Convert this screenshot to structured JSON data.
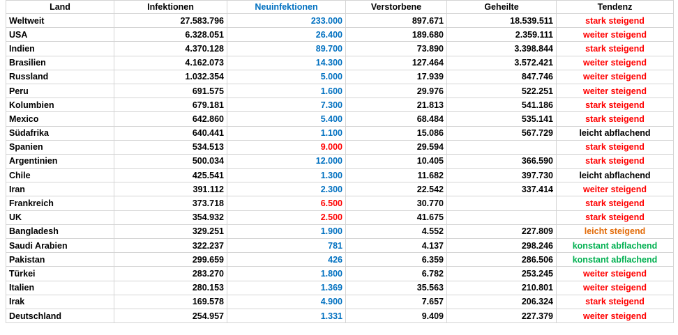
{
  "table": {
    "header": [
      "Land",
      "Infektionen",
      "Neuinfektionen",
      "Verstorbene",
      "Geheilte",
      "Tendenz"
    ],
    "header_colors": [
      "#000000",
      "#000000",
      "#0070c0",
      "#000000",
      "#000000",
      "#000000"
    ],
    "rows": [
      {
        "cells": [
          "Weltweit",
          "27.583.796",
          "233.000",
          "897.671",
          "18.539.511",
          "stark steigend"
        ],
        "new_color": "#0070c0",
        "trend_color": "#ff0000"
      },
      {
        "cells": [
          "USA",
          "6.328.051",
          "26.400",
          "189.680",
          "2.359.111",
          "weiter steigend"
        ],
        "new_color": "#0070c0",
        "trend_color": "#ff0000"
      },
      {
        "cells": [
          "Indien",
          "4.370.128",
          "89.700",
          "73.890",
          "3.398.844",
          "stark steigend"
        ],
        "new_color": "#0070c0",
        "trend_color": "#ff0000"
      },
      {
        "cells": [
          "Brasilien",
          "4.162.073",
          "14.300",
          "127.464",
          "3.572.421",
          "weiter steigend"
        ],
        "new_color": "#0070c0",
        "trend_color": "#ff0000"
      },
      {
        "cells": [
          "Russland",
          "1.032.354",
          "5.000",
          "17.939",
          "847.746",
          "weiter steigend"
        ],
        "new_color": "#0070c0",
        "trend_color": "#ff0000"
      },
      {
        "cells": [
          "Peru",
          "691.575",
          "1.600",
          "29.976",
          "522.251",
          "weiter steigend"
        ],
        "new_color": "#0070c0",
        "trend_color": "#ff0000"
      },
      {
        "cells": [
          "Kolumbien",
          "679.181",
          "7.300",
          "21.813",
          "541.186",
          "stark steigend"
        ],
        "new_color": "#0070c0",
        "trend_color": "#ff0000"
      },
      {
        "cells": [
          "Mexico",
          "642.860",
          "5.400",
          "68.484",
          "535.141",
          "stark steigend"
        ],
        "new_color": "#0070c0",
        "trend_color": "#ff0000"
      },
      {
        "cells": [
          "Südafrika",
          "640.441",
          "1.100",
          "15.086",
          "567.729",
          "leicht abflachend"
        ],
        "new_color": "#0070c0",
        "trend_color": "#000000"
      },
      {
        "cells": [
          "Spanien",
          "534.513",
          "9.000",
          "29.594",
          null,
          "stark steigend"
        ],
        "new_color": "#ff0000",
        "trend_color": "#ff0000"
      },
      {
        "cells": [
          "Argentinien",
          "500.034",
          "12.000",
          "10.405",
          "366.590",
          "stark steigend"
        ],
        "new_color": "#0070c0",
        "trend_color": "#ff0000"
      },
      {
        "cells": [
          "Chile",
          "425.541",
          "1.300",
          "11.682",
          "397.730",
          "leicht abflachend"
        ],
        "new_color": "#0070c0",
        "trend_color": "#000000"
      },
      {
        "cells": [
          "Iran",
          "391.112",
          "2.300",
          "22.542",
          "337.414",
          "weiter steigend"
        ],
        "new_color": "#0070c0",
        "trend_color": "#ff0000"
      },
      {
        "cells": [
          "Frankreich",
          "373.718",
          "6.500",
          "30.770",
          null,
          "stark steigend"
        ],
        "new_color": "#ff0000",
        "trend_color": "#ff0000"
      },
      {
        "cells": [
          "UK",
          "354.932",
          "2.500",
          "41.675",
          null,
          "stark steigend"
        ],
        "new_color": "#ff0000",
        "trend_color": "#ff0000"
      },
      {
        "cells": [
          "Bangladesh",
          "329.251",
          "1.900",
          "4.552",
          "227.809",
          "leicht steigend"
        ],
        "new_color": "#0070c0",
        "trend_color": "#e36c09"
      },
      {
        "cells": [
          "Saudi Arabien",
          "322.237",
          "781",
          "4.137",
          "298.246",
          "konstant abflachend"
        ],
        "new_color": "#0070c0",
        "trend_color": "#00b050"
      },
      {
        "cells": [
          "Pakistan",
          "299.659",
          "426",
          "6.359",
          "286.506",
          "konstant abflachend"
        ],
        "new_color": "#0070c0",
        "trend_color": "#00b050"
      },
      {
        "cells": [
          "Türkei",
          "283.270",
          "1.800",
          "6.782",
          "253.245",
          "weiter steigend"
        ],
        "new_color": "#0070c0",
        "trend_color": "#ff0000"
      },
      {
        "cells": [
          "Italien",
          "280.153",
          "1.369",
          "35.563",
          "210.801",
          "weiter steigend"
        ],
        "new_color": "#0070c0",
        "trend_color": "#ff0000"
      },
      {
        "cells": [
          "Irak",
          "169.578",
          "4.900",
          "7.657",
          "206.324",
          "stark steigend"
        ],
        "new_color": "#0070c0",
        "trend_color": "#ff0000"
      },
      {
        "cells": [
          "Deutschland",
          "254.957",
          "1.331",
          "9.409",
          "227.379",
          "weiter steigend"
        ],
        "new_color": "#0070c0",
        "trend_color": "#ff0000"
      }
    ]
  }
}
